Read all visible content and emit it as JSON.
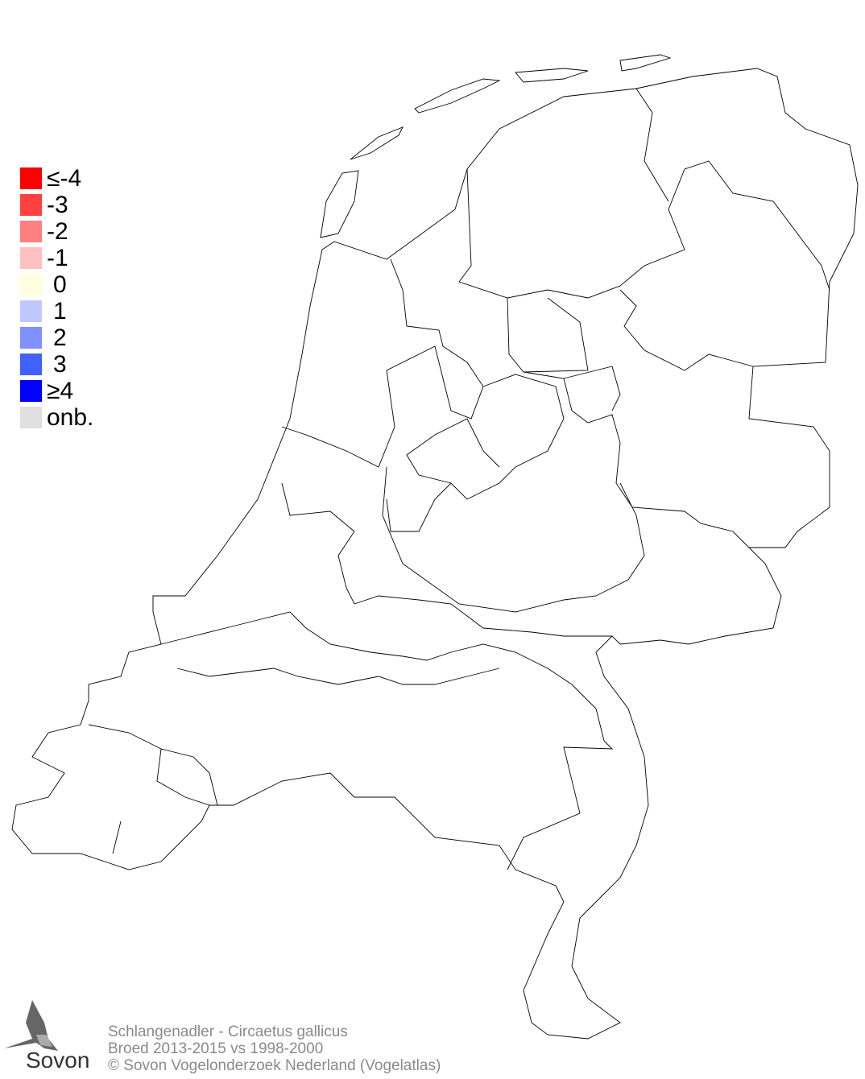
{
  "legend": {
    "items": [
      {
        "label": "≤-4",
        "color": "#ff0000"
      },
      {
        "label": "-3",
        "color": "#ff4040"
      },
      {
        "label": "-2",
        "color": "#ff8080"
      },
      {
        "label": "-1",
        "color": "#ffc0c0"
      },
      {
        "label": "0",
        "color": "#ffffe0"
      },
      {
        "label": "1",
        "color": "#c0c8ff"
      },
      {
        "label": "2",
        "color": "#8090ff"
      },
      {
        "label": "3",
        "color": "#4060ff"
      },
      {
        "label": "≥4",
        "color": "#0000ff"
      },
      {
        "label": "onb.",
        "color": "#e0e0e0"
      }
    ]
  },
  "footer": {
    "species": "Schlangenadler - Circaetus gallicus",
    "period": "Broed 2013-2015 vs 1998-2000",
    "copyright": "© Sovon Vogelonderzoek Nederland (Vogelatlas)"
  },
  "logo": {
    "text": "Sovon",
    "icon": "swallow-icon"
  }
}
